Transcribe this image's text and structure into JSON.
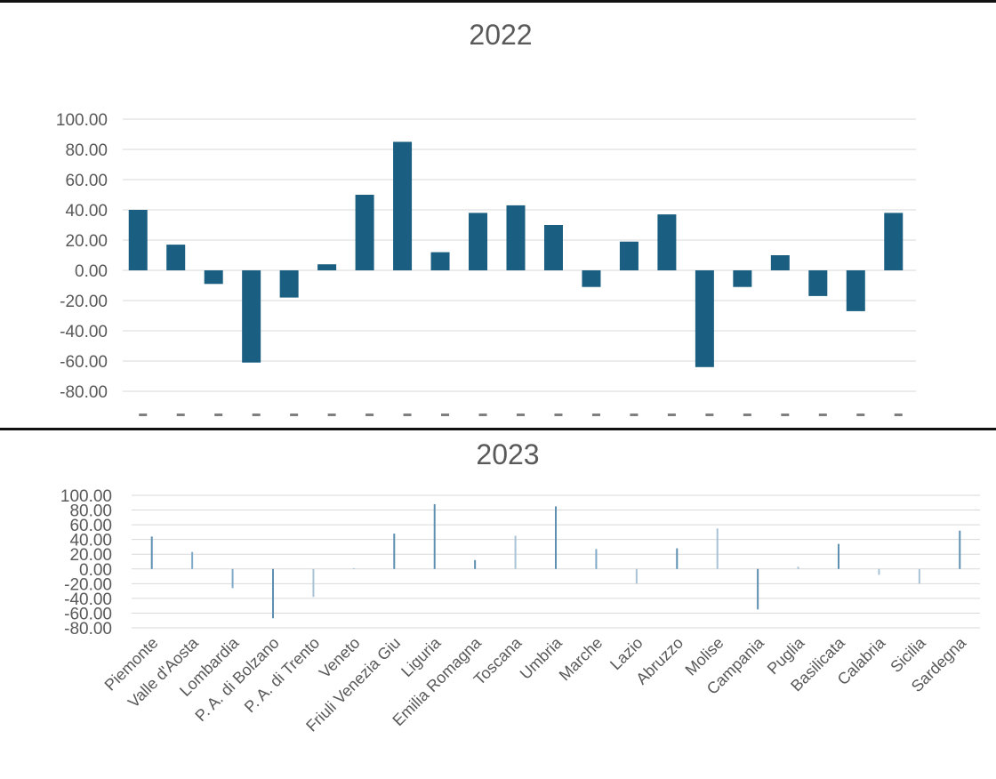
{
  "chart_data": [
    {
      "type": "bar",
      "title": "2022",
      "categories": [
        "Piemonte",
        "Valle d'Aosta",
        "Lombardia",
        "P. A. di Bolzano",
        "P. A. di Trento",
        "Veneto",
        "Friuli Venezia Giu",
        "Liguria",
        "Emilia Romagna",
        "Toscana",
        "Umbria",
        "Marche",
        "Lazio",
        "Abruzzo",
        "Molise",
        "Campania",
        "Puglia",
        "Basilicata",
        "Calabria",
        "Sicilia",
        "Sardegna"
      ],
      "values": [
        40,
        17,
        -9,
        -61,
        -18,
        4,
        50,
        85,
        12,
        38,
        43,
        30,
        -11,
        19,
        37,
        -64,
        -11,
        10,
        -17,
        -27,
        38
      ],
      "ylim": [
        -80,
        100
      ],
      "yticks": [
        "100.00",
        "80.00",
        "60.00",
        "40.00",
        "20.00",
        "0.00",
        "-20.00",
        "-40.00",
        "-60.00",
        "-80.00"
      ],
      "grid": true,
      "bar_color": "#1a5f82",
      "xlabel": "",
      "ylabel": ""
    },
    {
      "type": "bar",
      "title": "2023",
      "categories": [
        "Piemonte",
        "Valle d'Aosta",
        "Lombardia",
        "P. A. di Bolzano",
        "P. A. di Trento",
        "Veneto",
        "Friuli Venezia Giu",
        "Liguria",
        "Emilia Romagna",
        "Toscana",
        "Umbria",
        "Marche",
        "Lazio",
        "Abruzzo",
        "Molise",
        "Campania",
        "Puglia",
        "Basilicata",
        "Calabria",
        "Sicilia",
        "Sardegna"
      ],
      "values": [
        44,
        23,
        -26,
        -67,
        -38,
        1,
        48,
        88,
        12,
        45,
        85,
        27,
        -20,
        28,
        55,
        -55,
        3,
        34,
        -8,
        -20,
        52
      ],
      "ylim": [
        -80,
        100
      ],
      "yticks": [
        "100.00",
        "80.00",
        "60.00",
        "40.00",
        "20.00",
        "0.00",
        "-20.00",
        "-40.00",
        "-60.00",
        "-80.00"
      ],
      "grid": true,
      "bar_colors": [
        "#5d8fb0",
        "#7fa9c6",
        "#7fa9c6",
        "#5d8fb0",
        "#a9c3d6",
        "#a9c3d6",
        "#5d8fb0",
        "#5d8fb0",
        "#5d8fb0",
        "#a9c3d6",
        "#5d8fb0",
        "#7fa9c6",
        "#a9c3d6",
        "#5d8fb0",
        "#a9c3d6",
        "#5d8fb0",
        "#a9c3d6",
        "#5d8fb0",
        "#a9c3d6",
        "#a9c3d6",
        "#5d8fb0"
      ],
      "xlabel": "",
      "ylabel": ""
    }
  ]
}
